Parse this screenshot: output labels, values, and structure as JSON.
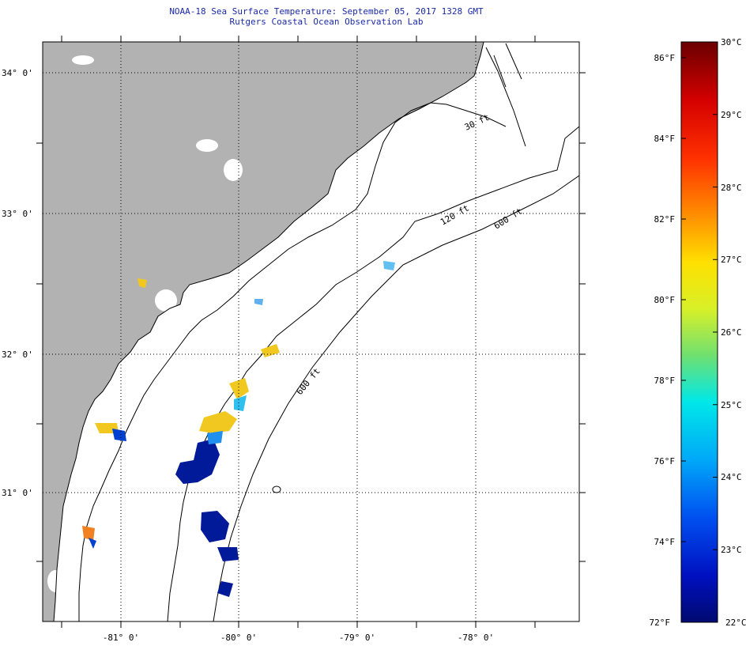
{
  "header": {
    "title": "NOAA-18 Sea Surface Temperature:  September 05, 2017 1328 GMT",
    "subtitle": "Rutgers Coastal Ocean Observation Lab"
  },
  "map": {
    "lat_labels": [
      "34° 0'",
      "33° 0'",
      "32° 0'",
      "31° 0'"
    ],
    "lon_labels": [
      "-81° 0'",
      "-80° 0'",
      "-79° 0'",
      "-78° 0'"
    ],
    "contour_labels": {
      "c30": "30 ft",
      "c120": "120 ft",
      "c600a": "600 ft",
      "c600b": "600 ft"
    },
    "land_color": "#b2b2b2"
  },
  "colorbar": {
    "f_labels": [
      "86°F",
      "84°F",
      "82°F",
      "80°F",
      "78°F",
      "76°F",
      "74°F",
      "72°F"
    ],
    "c_labels": [
      "30°C",
      "29°C",
      "28°C",
      "27°C",
      "26°C",
      "25°C",
      "24°C",
      "23°C",
      "22°C"
    ],
    "colors": [
      "#7a0000",
      "#e00000",
      "#ff7a00",
      "#ffd800",
      "#d8f020",
      "#60e080",
      "#00e8f0",
      "#0070f0",
      "#0010c8",
      "#001070"
    ]
  }
}
